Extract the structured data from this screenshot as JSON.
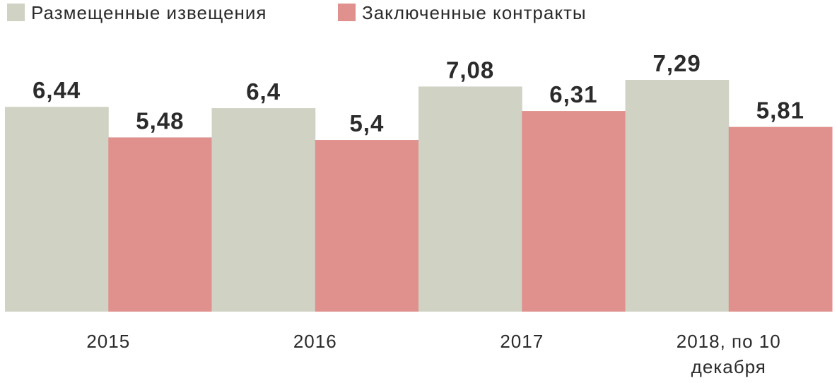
{
  "chart_data": {
    "type": "bar",
    "categories": [
      "2015",
      "2016",
      "2017",
      "2018, по 10 декабря"
    ],
    "series": [
      {
        "name": "Размещенные извещения",
        "color": "#d0d2c4",
        "values": [
          6.44,
          6.4,
          7.08,
          7.29
        ],
        "value_labels": [
          "6,44",
          "6,4",
          "7,08",
          "7,29"
        ]
      },
      {
        "name": "Заключенные контракты",
        "color": "#e0918e",
        "values": [
          5.48,
          5.4,
          6.31,
          5.81
        ],
        "value_labels": [
          "5,48",
          "5,4",
          "6,31",
          "5,81"
        ]
      }
    ],
    "legend": "top-left"
  }
}
